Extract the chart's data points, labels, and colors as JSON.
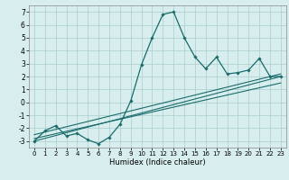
{
  "title": "",
  "xlabel": "Humidex (Indice chaleur)",
  "ylabel": "",
  "background_color": "#d8eeee",
  "grid_color": "#aacccc",
  "line_color": "#1a6b6b",
  "xlim": [
    -0.5,
    23.5
  ],
  "ylim": [
    -3.5,
    7.5
  ],
  "xticks": [
    0,
    1,
    2,
    3,
    4,
    5,
    6,
    7,
    8,
    9,
    10,
    11,
    12,
    13,
    14,
    15,
    16,
    17,
    18,
    19,
    20,
    21,
    22,
    23
  ],
  "yticks": [
    -3,
    -2,
    -1,
    0,
    1,
    2,
    3,
    4,
    5,
    6,
    7
  ],
  "main_x": [
    0,
    1,
    2,
    3,
    4,
    5,
    6,
    7,
    8,
    9,
    10,
    11,
    12,
    13,
    14,
    15,
    16,
    17,
    18,
    19,
    20,
    21,
    22,
    23
  ],
  "main_y": [
    -3.0,
    -2.2,
    -1.8,
    -2.6,
    -2.4,
    -2.9,
    -3.2,
    -2.7,
    -1.7,
    0.1,
    2.9,
    5.0,
    6.8,
    7.0,
    5.0,
    3.5,
    2.6,
    3.5,
    2.2,
    2.3,
    2.5,
    3.4,
    2.0,
    2.0
  ],
  "line1_x": [
    0,
    23
  ],
  "line1_y": [
    -3.0,
    2.0
  ],
  "line2_x": [
    0,
    23
  ],
  "line2_y": [
    -2.8,
    1.5
  ],
  "line3_x": [
    0,
    23
  ],
  "line3_y": [
    -2.5,
    2.2
  ]
}
